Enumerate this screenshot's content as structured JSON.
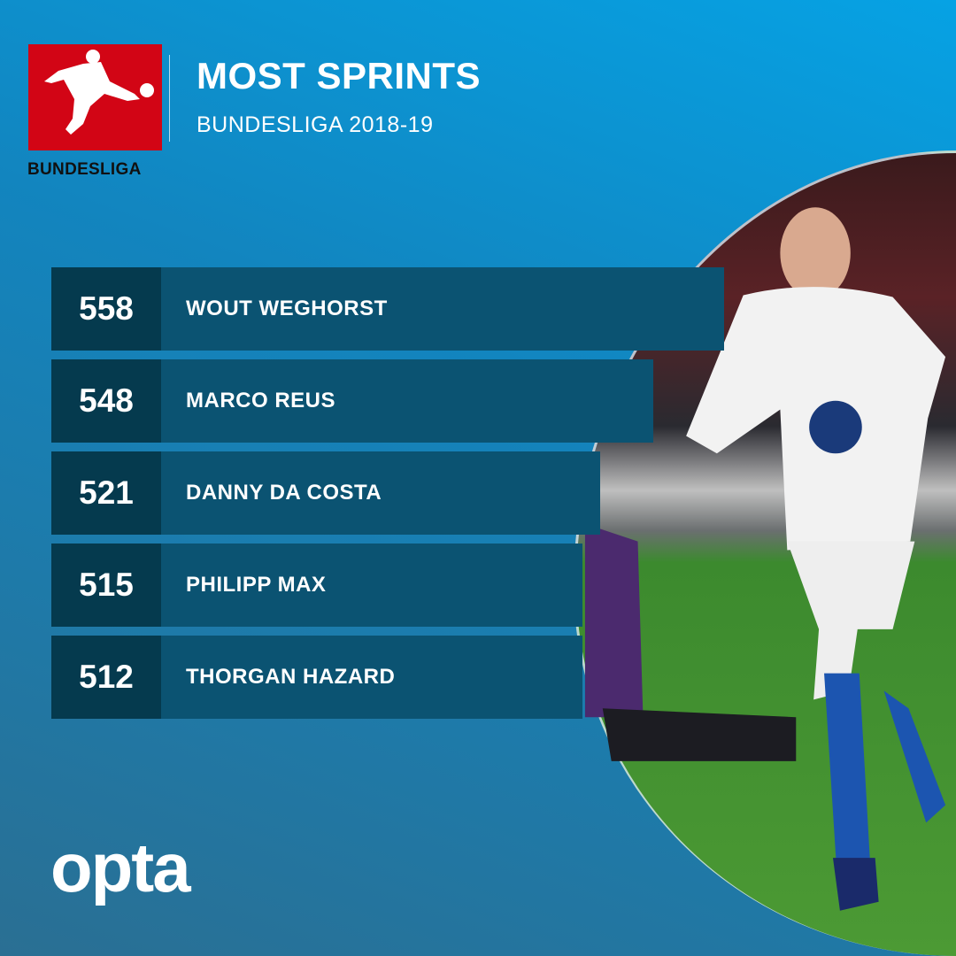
{
  "header": {
    "title": "MOST SPRINTS",
    "subtitle": "BUNDESLIGA 2018-19",
    "logo_text": "BUNDESLIGA"
  },
  "chart_data": {
    "type": "table",
    "title": "MOST SPRINTS",
    "subtitle": "BUNDESLIGA 2018-19",
    "rows": [
      {
        "value": "558",
        "name": "WOUT WEGHORST"
      },
      {
        "value": "548",
        "name": "MARCO REUS"
      },
      {
        "value": "521",
        "name": "DANNY DA COSTA"
      },
      {
        "value": "515",
        "name": "PHILIPP MAX"
      },
      {
        "value": "512",
        "name": "THORGAN HAZARD"
      }
    ]
  },
  "footer": {
    "brand": "opta"
  },
  "colors": {
    "logo_red": "#d20515",
    "bar": "#0b5372",
    "value_box": "#053a4e",
    "background_top": "#06a2e4",
    "background_bottom": "#2a6f93"
  }
}
